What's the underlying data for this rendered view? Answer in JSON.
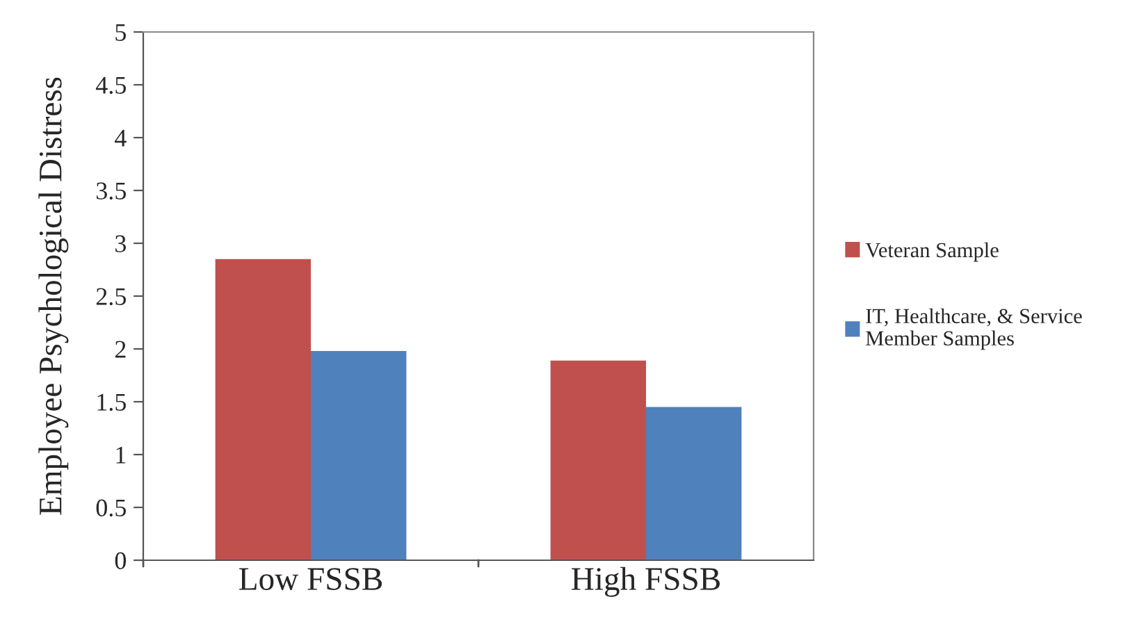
{
  "chart_data": {
    "type": "bar",
    "ylabel": "Employee Psychological Distress",
    "categories": [
      "Low FSSB",
      "High FSSB"
    ],
    "series": [
      {
        "name": "Veteran Sample",
        "color": "#c0504d",
        "values": [
          2.85,
          1.89
        ]
      },
      {
        "name": "IT, Healthcare, & Service\nMember Samples",
        "color": "#4f81bd",
        "values": [
          1.98,
          1.45
        ]
      }
    ],
    "ylim": [
      0,
      5
    ],
    "yticks": [
      0,
      0.5,
      1,
      1.5,
      2,
      2.5,
      3,
      3.5,
      4,
      4.5,
      5
    ],
    "grid": false,
    "legend": "right"
  }
}
